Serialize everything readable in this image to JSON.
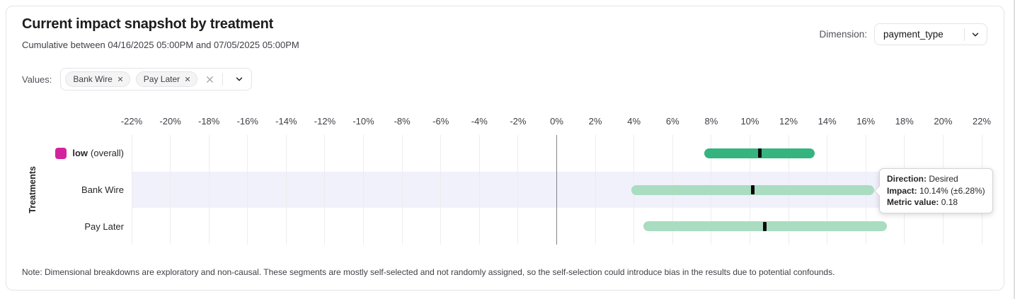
{
  "header": {
    "title": "Current impact snapshot by treatment",
    "subtitle": "Cumulative between 04/16/2025 05:00PM and 07/05/2025 05:00PM",
    "dimension_label": "Dimension:",
    "dimension_value": "payment_type"
  },
  "filters": {
    "values_label": "Values:",
    "chips": [
      {
        "label": "Bank Wire"
      },
      {
        "label": "Pay Later"
      }
    ]
  },
  "chart_data": {
    "type": "bar",
    "subtype": "horizontal_interval",
    "ylabel": "Treatments",
    "xlabel": "",
    "grid": true,
    "zero_line": true,
    "x_axis": {
      "min": -22,
      "max": 22,
      "step": 2,
      "ticks": [
        "-22%",
        "-20%",
        "-18%",
        "-16%",
        "-14%",
        "-12%",
        "-10%",
        "-8%",
        "-6%",
        "-4%",
        "-2%",
        "0%",
        "2%",
        "4%",
        "6%",
        "8%",
        "10%",
        "12%",
        "14%",
        "16%",
        "18%",
        "20%",
        "22%"
      ]
    },
    "rows": [
      {
        "label": "low",
        "label_note": "(overall)",
        "impact": 10.5,
        "ci": 2.85,
        "low": 7.65,
        "high": 13.35,
        "bar_color": "#36b480",
        "legend_color": "#d3229e",
        "highlighted": false
      },
      {
        "label": "Bank Wire",
        "impact": 10.14,
        "ci": 6.28,
        "low": 3.86,
        "high": 16.42,
        "bar_color": "#a9dcc0",
        "highlighted": true
      },
      {
        "label": "Pay Later",
        "impact": 10.78,
        "ci": 6.3,
        "low": 4.48,
        "high": 17.08,
        "bar_color": "#a9dcc0",
        "highlighted": false
      }
    ]
  },
  "tooltip": {
    "direction_label": "Direction:",
    "direction_value": "Desired",
    "impact_label": "Impact:",
    "impact_value": "10.14% (±6.28%)",
    "metric_label": "Metric value:",
    "metric_value": "0.18"
  },
  "colors": {
    "overall_bar": "#36b480",
    "segment_bar": "#a9dcc0",
    "overall_legend_swatch": "#d3229e",
    "highlight_band": "#f0f1fb",
    "zero_line": "#82828a",
    "gridline": "#ededed"
  },
  "note": "Note: Dimensional breakdowns are exploratory and non-causal. These segments are mostly self-selected and not randomly assigned, so the self-selection could introduce bias in the results due to potential confounds."
}
